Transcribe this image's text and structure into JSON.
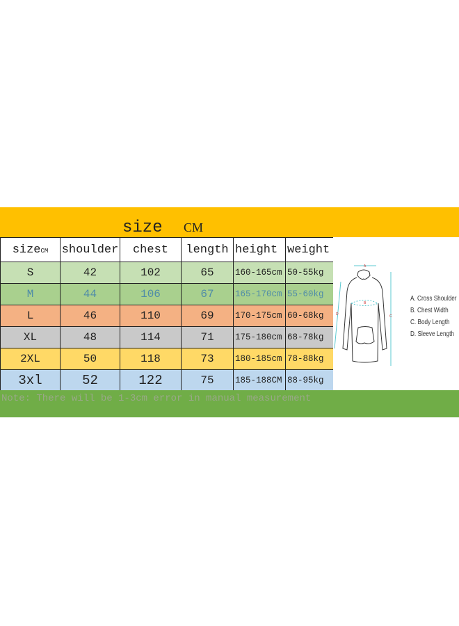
{
  "header": {
    "title": "size",
    "unit": "CM"
  },
  "table": {
    "columns": [
      "size",
      "shoulder",
      "chest",
      "length",
      "height",
      "weight"
    ],
    "size_unit": "CM",
    "rows": [
      {
        "cells": [
          "S",
          "42",
          "102",
          "65",
          "160-165cm",
          "50-55kg"
        ],
        "bg": "#C6E0B4",
        "color": "#222222"
      },
      {
        "cells": [
          "M",
          "44",
          "106",
          "67",
          "165-170cm",
          "55-60kg"
        ],
        "bg": "#A9D08E",
        "color": "#4F8CA8"
      },
      {
        "cells": [
          "L",
          "46",
          "110",
          "69",
          "170-175cm",
          "60-68kg"
        ],
        "bg": "#F4B183",
        "color": "#222222"
      },
      {
        "cells": [
          "XL",
          "48",
          "114",
          "71",
          "175-180cm",
          "68-78kg"
        ],
        "bg": "#C9C9C9",
        "color": "#222222"
      },
      {
        "cells": [
          "2XL",
          "50",
          "118",
          "73",
          "180-185cm",
          "78-88kg"
        ],
        "bg": "#FFD966",
        "color": "#222222"
      },
      {
        "cells": [
          "3xl",
          "52",
          "122",
          "75",
          "185-188CM",
          "88-95kg"
        ],
        "bg": "#BDD7EE",
        "color": "#222222"
      }
    ]
  },
  "note": "Note: There will be 1-3cm error in manual measurement",
  "diagram": {
    "markers": [
      "A",
      "B",
      "C",
      "D"
    ],
    "legend": [
      "A. Cross Shoulder",
      "B. Chest Width",
      "C. Body Length",
      "D. Sleeve Length"
    ]
  },
  "colors": {
    "top_band": "#FFC000",
    "bottom_band": "#70AD47",
    "measure_line": "#5BC8D0"
  }
}
